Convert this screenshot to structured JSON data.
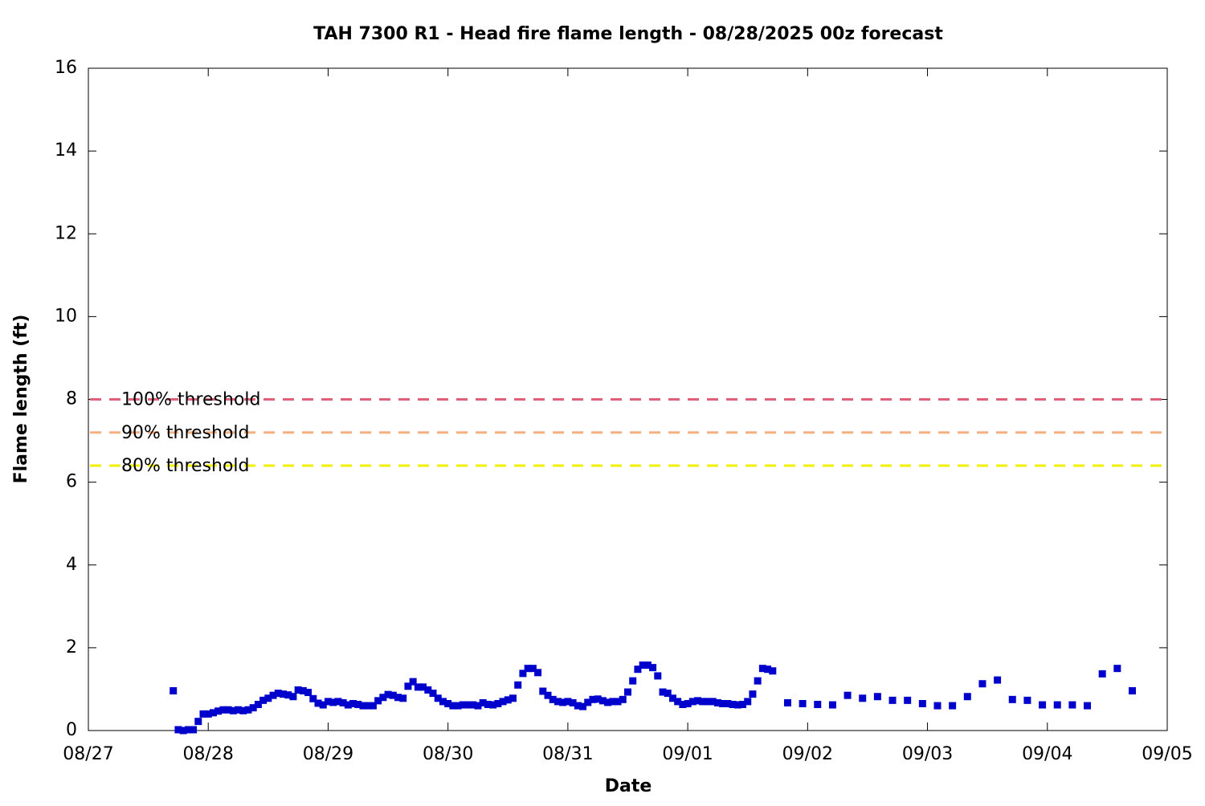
{
  "chart_data": {
    "type": "scatter",
    "title": "TAH 7300 R1 - Head fire flame length - 08/28/2025 00z forecast",
    "x_label": "Date",
    "y_label": "Flame length (ft)",
    "xlim": [
      0,
      216
    ],
    "xticks": [
      {
        "value": 0,
        "label": "08/27"
      },
      {
        "value": 24,
        "label": "08/28"
      },
      {
        "value": 48,
        "label": "08/29"
      },
      {
        "value": 72,
        "label": "08/30"
      },
      {
        "value": 96,
        "label": "08/31"
      },
      {
        "value": 120,
        "label": "09/01"
      },
      {
        "value": 144,
        "label": "09/02"
      },
      {
        "value": 168,
        "label": "09/03"
      },
      {
        "value": 192,
        "label": "09/04"
      },
      {
        "value": 216,
        "label": "09/05"
      }
    ],
    "ylim": [
      0,
      16
    ],
    "yticks": [
      0,
      2,
      4,
      6,
      8,
      10,
      12,
      14,
      16
    ],
    "color": "#0000cc",
    "x": [
      17,
      18,
      19,
      20,
      21,
      22,
      23,
      24,
      25,
      26,
      27,
      28,
      29,
      30,
      31,
      32,
      33,
      34,
      35,
      36,
      37,
      38,
      39,
      40,
      41,
      42,
      43,
      44,
      45,
      46,
      47,
      48,
      49,
      50,
      51,
      52,
      53,
      54,
      55,
      56,
      57,
      58,
      59,
      60,
      61,
      62,
      63,
      64,
      65,
      66,
      67,
      68,
      69,
      70,
      71,
      72,
      73,
      74,
      75,
      76,
      77,
      78,
      79,
      80,
      81,
      82,
      83,
      84,
      85,
      86,
      87,
      88,
      89,
      90,
      91,
      92,
      93,
      94,
      95,
      96,
      97,
      98,
      99,
      100,
      101,
      102,
      103,
      104,
      105,
      106,
      107,
      108,
      109,
      110,
      111,
      112,
      113,
      114,
      115,
      116,
      117,
      118,
      119,
      120,
      121,
      122,
      123,
      124,
      125,
      126,
      127,
      128,
      129,
      130,
      131,
      132,
      133,
      134,
      135,
      136,
      137,
      140,
      143,
      146,
      149,
      152,
      155,
      158,
      161,
      164,
      167,
      170,
      173,
      176,
      179,
      182,
      185,
      188,
      191,
      194,
      197,
      200,
      203,
      206,
      209
    ],
    "values": [
      0.96,
      0.02,
      0.0,
      0.02,
      0.02,
      0.22,
      0.4,
      0.4,
      0.43,
      0.47,
      0.5,
      0.5,
      0.48,
      0.5,
      0.48,
      0.5,
      0.55,
      0.63,
      0.73,
      0.78,
      0.85,
      0.9,
      0.88,
      0.86,
      0.82,
      0.98,
      0.96,
      0.92,
      0.77,
      0.66,
      0.62,
      0.7,
      0.68,
      0.7,
      0.67,
      0.62,
      0.65,
      0.63,
      0.6,
      0.6,
      0.6,
      0.72,
      0.8,
      0.87,
      0.85,
      0.8,
      0.78,
      1.07,
      1.18,
      1.05,
      1.05,
      0.98,
      0.9,
      0.78,
      0.7,
      0.65,
      0.6,
      0.6,
      0.62,
      0.62,
      0.62,
      0.6,
      0.67,
      0.63,
      0.62,
      0.65,
      0.7,
      0.74,
      0.78,
      1.1,
      1.38,
      1.5,
      1.5,
      1.4,
      0.95,
      0.85,
      0.75,
      0.7,
      0.68,
      0.7,
      0.67,
      0.6,
      0.58,
      0.68,
      0.75,
      0.76,
      0.72,
      0.68,
      0.7,
      0.7,
      0.75,
      0.93,
      1.2,
      1.48,
      1.58,
      1.58,
      1.52,
      1.32,
      0.93,
      0.9,
      0.78,
      0.7,
      0.63,
      0.65,
      0.7,
      0.72,
      0.7,
      0.7,
      0.7,
      0.67,
      0.65,
      0.65,
      0.63,
      0.62,
      0.63,
      0.7,
      0.88,
      1.2,
      1.5,
      1.48,
      1.44,
      0.67,
      0.65,
      0.63,
      0.62,
      0.85,
      0.78,
      0.82,
      0.73,
      0.73,
      0.65,
      0.6,
      0.6,
      0.82,
      1.13,
      1.22,
      0.75,
      0.73,
      0.62,
      0.62,
      0.62,
      0.6,
      1.37,
      1.5,
      0.96
    ],
    "thresholds": [
      {
        "label": "100% threshold",
        "value": 8,
        "color": "#e0607a"
      },
      {
        "label": "90% threshold",
        "value": 7.2,
        "color": "#f4b080"
      },
      {
        "label": "80% threshold",
        "value": 6.4,
        "color": "#f0f000"
      }
    ]
  }
}
